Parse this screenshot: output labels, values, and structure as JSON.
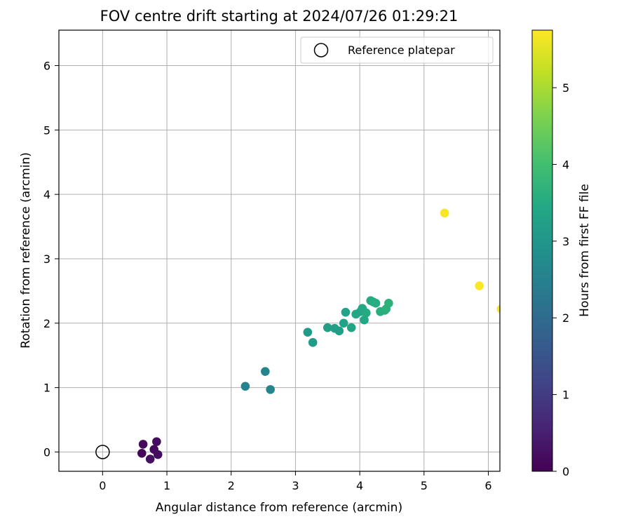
{
  "chart_data": {
    "type": "scatter",
    "title": "FOV centre drift starting at 2024/07/26 01:29:21",
    "xlabel": "Angular distance from reference (arcmin)",
    "ylabel": "Rotation from reference (arcmin)",
    "xlim": [
      -0.68,
      6.18
    ],
    "ylim": [
      -0.3,
      6.55
    ],
    "xticks": [
      0,
      1,
      2,
      3,
      4,
      5,
      6
    ],
    "yticks": [
      0,
      1,
      2,
      3,
      4,
      5,
      6
    ],
    "grid": true,
    "legend": {
      "placement": "top-right",
      "entries": [
        "Reference platepar"
      ]
    },
    "reference_point": {
      "x": 0,
      "y": 0
    },
    "colorbar": {
      "label": "Hours from first FF file",
      "range": [
        0,
        5.75
      ],
      "ticks": [
        0,
        1,
        2,
        3,
        4,
        5
      ],
      "colormap": "viridis"
    },
    "points": [
      {
        "x": 0.63,
        "y": 0.12,
        "hours": 0.15
      },
      {
        "x": 0.84,
        "y": 0.16,
        "hours": 0.2
      },
      {
        "x": 0.61,
        "y": -0.02,
        "hours": 0.1
      },
      {
        "x": 0.8,
        "y": 0.04,
        "hours": 0.15
      },
      {
        "x": 0.86,
        "y": -0.04,
        "hours": 0.2
      },
      {
        "x": 0.74,
        "y": -0.11,
        "hours": 0.25
      },
      {
        "x": 2.22,
        "y": 1.02,
        "hours": 2.55
      },
      {
        "x": 2.53,
        "y": 1.25,
        "hours": 2.6
      },
      {
        "x": 2.61,
        "y": 0.97,
        "hours": 2.6
      },
      {
        "x": 3.19,
        "y": 1.86,
        "hours": 3.1
      },
      {
        "x": 3.27,
        "y": 1.7,
        "hours": 3.15
      },
      {
        "x": 3.5,
        "y": 1.93,
        "hours": 3.2
      },
      {
        "x": 3.61,
        "y": 1.92,
        "hours": 3.25
      },
      {
        "x": 3.68,
        "y": 1.88,
        "hours": 3.25
      },
      {
        "x": 3.75,
        "y": 2.0,
        "hours": 3.3
      },
      {
        "x": 3.78,
        "y": 2.17,
        "hours": 3.3
      },
      {
        "x": 3.87,
        "y": 1.93,
        "hours": 3.35
      },
      {
        "x": 3.94,
        "y": 2.14,
        "hours": 3.4
      },
      {
        "x": 4.01,
        "y": 2.18,
        "hours": 3.4
      },
      {
        "x": 4.04,
        "y": 2.23,
        "hours": 3.45
      },
      {
        "x": 4.07,
        "y": 2.05,
        "hours": 3.45
      },
      {
        "x": 4.1,
        "y": 2.16,
        "hours": 3.5
      },
      {
        "x": 4.17,
        "y": 2.35,
        "hours": 3.5
      },
      {
        "x": 4.21,
        "y": 2.33,
        "hours": 3.55
      },
      {
        "x": 4.25,
        "y": 2.31,
        "hours": 3.55
      },
      {
        "x": 4.32,
        "y": 2.18,
        "hours": 3.6
      },
      {
        "x": 4.39,
        "y": 2.2,
        "hours": 3.6
      },
      {
        "x": 4.41,
        "y": 2.22,
        "hours": 3.65
      },
      {
        "x": 4.45,
        "y": 2.31,
        "hours": 3.65
      },
      {
        "x": 5.32,
        "y": 3.71,
        "hours": 5.7
      },
      {
        "x": 5.86,
        "y": 2.58,
        "hours": 5.72
      },
      {
        "x": 6.2,
        "y": 2.22,
        "hours": 5.75
      }
    ]
  }
}
